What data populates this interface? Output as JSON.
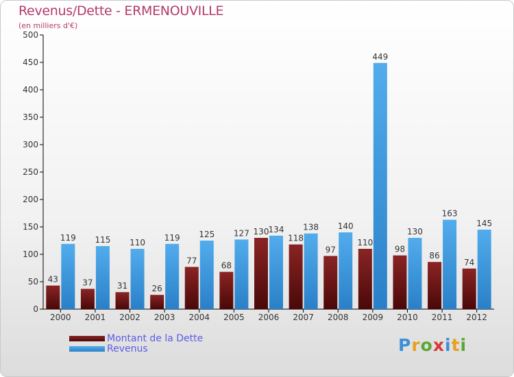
{
  "chart_data": {
    "type": "bar",
    "title": "Revenus/Dette - ERMENOUVILLE",
    "subtitle": "(en milliers d'€)",
    "categories": [
      "2000",
      "2001",
      "2002",
      "2003",
      "2004",
      "2005",
      "2006",
      "2007",
      "2008",
      "2009",
      "2010",
      "2011",
      "2012"
    ],
    "series": [
      {
        "name": "Montant de la Dette",
        "color": "#7a1a1a",
        "values": [
          43,
          37,
          31,
          26,
          77,
          68,
          130,
          118,
          97,
          110,
          98,
          86,
          74
        ]
      },
      {
        "name": "Revenus",
        "color": "#3d9be0",
        "values": [
          119,
          115,
          110,
          119,
          125,
          127,
          134,
          138,
          140,
          449,
          130,
          163,
          145
        ]
      }
    ],
    "ylim": [
      0,
      500
    ],
    "yticks": [
      0,
      50,
      100,
      150,
      200,
      250,
      300,
      350,
      400,
      450,
      500
    ],
    "grid": false,
    "legend_position": "bottom-left"
  },
  "logo": {
    "text": "Proxiti"
  }
}
